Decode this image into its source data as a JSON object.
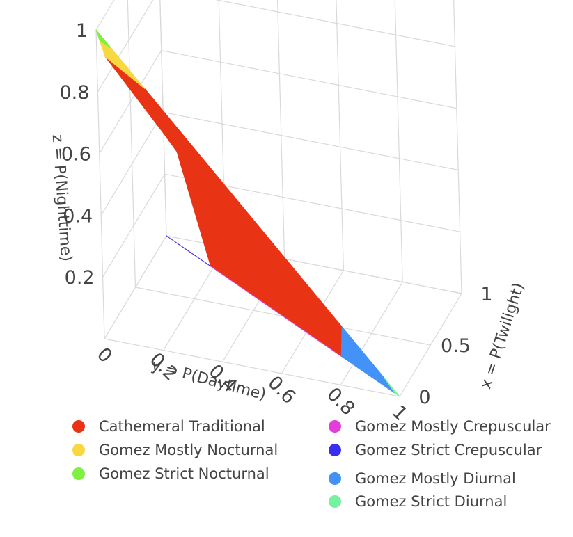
{
  "chart_data": {
    "type": "scatter",
    "subtype": "3d-ternary-region-map",
    "xlabel": "x = P(Twilight)",
    "ylabel": "y = P(Daytime)",
    "zlabel": "z = P(Nighttime)",
    "x_ticks": [
      "0",
      "0.5",
      "1"
    ],
    "y_ticks": [
      "0",
      "0.2",
      "0.4",
      "0.6",
      "0.8",
      "1"
    ],
    "z_ticks": [
      "0.2",
      "0.4",
      "0.6",
      "0.8",
      "1"
    ],
    "xlim": [
      0,
      1
    ],
    "ylim": [
      0,
      1
    ],
    "zlim": [
      0,
      1
    ],
    "grid": true,
    "legend_position": "bottom",
    "constraint": "x + y + z = 1",
    "series": [
      {
        "name": "Cathemeral Traditional",
        "color": "#e83414",
        "region": [
          [
            0.18,
            0.18,
            0.64
          ],
          [
            0.13,
            0.0,
            0.87
          ],
          [
            0.0,
            0.16,
            0.84
          ],
          [
            0.0,
            0.81,
            0.19
          ],
          [
            0.25,
            0.75,
            0.0
          ],
          [
            0.43,
            0.57,
            0.0
          ],
          [
            0.81,
            0.19,
            0.0
          ],
          [
            0.2,
            0.22,
            0.58
          ]
        ]
      },
      {
        "name": "Gomez Mostly Nocturnal",
        "color": "#f8d840",
        "region": [
          [
            0.13,
            0.0,
            0.87
          ],
          [
            0.05,
            0.0,
            0.95
          ],
          [
            0.0,
            0.05,
            0.95
          ],
          [
            0.0,
            0.16,
            0.84
          ]
        ]
      },
      {
        "name": "Gomez Strict Nocturnal",
        "color": "#7df040",
        "region": [
          [
            0.05,
            0.0,
            0.95
          ],
          [
            0.0,
            0.0,
            1.0
          ],
          [
            0.0,
            0.05,
            0.95
          ]
        ]
      },
      {
        "name": "Gomez Mostly Crepuscular",
        "color": "#e43ed9",
        "region": [
          [
            0.43,
            0.57,
            0.0
          ],
          [
            0.25,
            0.75,
            0.0
          ],
          [
            0.81,
            0.19,
            0.0
          ],
          [
            0.95,
            0.05,
            0.0
          ]
        ]
      },
      {
        "name": "Gomez Strict Crepuscular",
        "color": "#3a2cf0",
        "region": [
          [
            0.95,
            0.05,
            0.0
          ],
          [
            1.0,
            0.0,
            0.0
          ],
          [
            0.81,
            0.19,
            0.0
          ]
        ]
      },
      {
        "name": "Gomez Mostly Diurnal",
        "color": "#4292f8",
        "region": [
          [
            0.0,
            0.81,
            0.19
          ],
          [
            0.0,
            0.95,
            0.05
          ],
          [
            0.02,
            0.98,
            0.0
          ],
          [
            0.25,
            0.75,
            0.0
          ]
        ]
      },
      {
        "name": "Gomez Strict Diurnal",
        "color": "#73f3a0",
        "region": [
          [
            0.0,
            0.95,
            0.05
          ],
          [
            0.0,
            1.0,
            0.0
          ],
          [
            0.02,
            0.98,
            0.0
          ]
        ]
      }
    ],
    "legend": [
      {
        "name": "Cathemeral Traditional",
        "color": "#e83414"
      },
      {
        "name": "Gomez Mostly Nocturnal",
        "color": "#f8d840"
      },
      {
        "name": "Gomez Strict Nocturnal",
        "color": "#7df040"
      },
      {
        "name": "Gomez Mostly Crepuscular",
        "color": "#e43ed9"
      },
      {
        "name": "Gomez Strict Crepuscular",
        "color": "#3a2cf0"
      },
      {
        "name": "Gomez Mostly Diurnal",
        "color": "#4292f8"
      },
      {
        "name": "Gomez Strict Diurnal",
        "color": "#73f3a0"
      }
    ]
  }
}
